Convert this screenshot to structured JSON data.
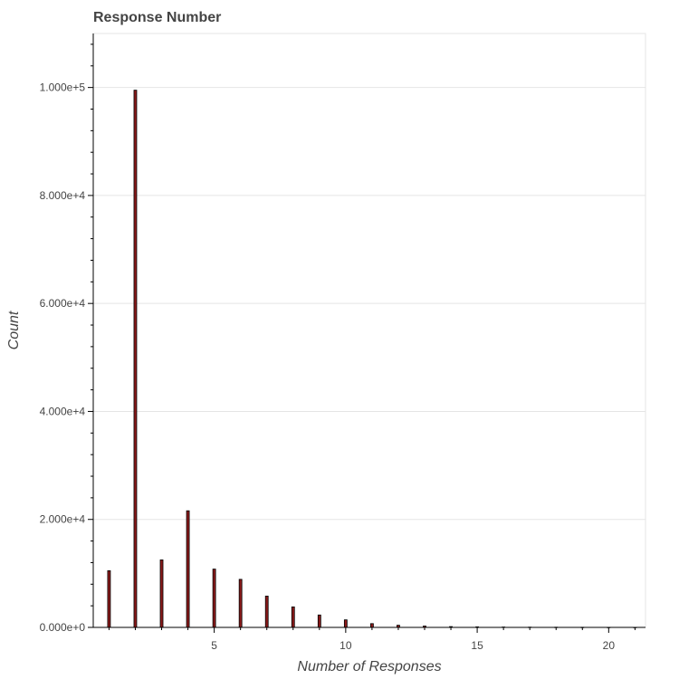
{
  "chart_data": {
    "type": "bar",
    "title": "Response Number",
    "xlabel": "Number of Responses",
    "ylabel": "Count",
    "xlim": [
      0.4,
      21.4
    ],
    "ylim": [
      0,
      110000
    ],
    "x_ticks": [
      5,
      10,
      15,
      20
    ],
    "y_ticks": [
      0,
      20000,
      40000,
      60000,
      80000,
      100000
    ],
    "y_tick_labels": [
      "0.000e+0",
      "2.000e+4",
      "4.000e+4",
      "6.000e+4",
      "8.000e+4",
      "1.000e+5"
    ],
    "grid": true,
    "bar_color": "#8b1a1a",
    "bar_edge_color": "#000000",
    "x": [
      1,
      2,
      3,
      4,
      5,
      6,
      7,
      8,
      9,
      10,
      11,
      12,
      13,
      14,
      15,
      16,
      17,
      18,
      19,
      20,
      21
    ],
    "values": [
      10500,
      99500,
      12500,
      21600,
      10800,
      8900,
      5800,
      3800,
      2300,
      1400,
      700,
      400,
      250,
      150,
      100,
      70,
      50,
      40,
      30,
      20,
      15
    ]
  }
}
